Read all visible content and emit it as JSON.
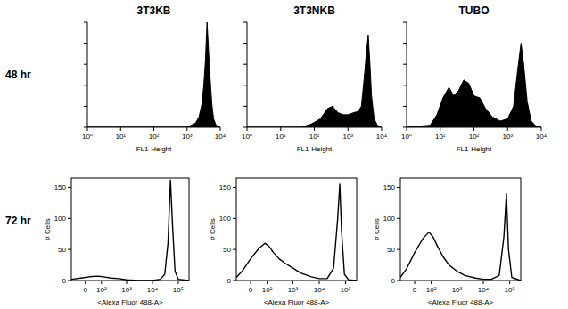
{
  "row_labels": [
    "48 hr",
    "72 hr"
  ],
  "chart_data": [
    {
      "type": "area",
      "title": "3T3KB",
      "x_label": "FL1-Height",
      "log": "x",
      "tick_labels": "x",
      "color": "#000000",
      "xlim": [
        1,
        10000
      ],
      "ylim": [
        0,
        100
      ],
      "xticks": [
        {
          "value": 1,
          "label": "10⁰"
        },
        {
          "value": 10,
          "label": "10¹"
        },
        {
          "value": 100,
          "label": "10²"
        },
        {
          "value": 1000,
          "label": "10³"
        },
        {
          "value": 10000,
          "label": "10⁴"
        }
      ],
      "yticks": [
        0,
        20,
        40,
        60,
        80,
        100
      ],
      "x": [
        1,
        1000,
        1800,
        2300,
        2800,
        3200,
        3600,
        4000,
        4500,
        5000,
        5600,
        6300,
        7500,
        10000
      ],
      "values": [
        0,
        0,
        4,
        10,
        22,
        40,
        65,
        100,
        70,
        45,
        22,
        8,
        2,
        0
      ]
    },
    {
      "type": "area",
      "title": "3T3NKB",
      "x_label": "FL1-Height",
      "log": "x",
      "tick_labels": "x",
      "color": "#000000",
      "xlim": [
        1,
        10000
      ],
      "ylim": [
        0,
        100
      ],
      "xticks": [
        {
          "value": 1,
          "label": "10⁰"
        },
        {
          "value": 10,
          "label": "10¹"
        },
        {
          "value": 100,
          "label": "10²"
        },
        {
          "value": 1000,
          "label": "10³"
        },
        {
          "value": 10000,
          "label": "10⁴"
        }
      ],
      "yticks": [
        0,
        20,
        40,
        60,
        80,
        100
      ],
      "x": [
        1,
        40,
        80,
        150,
        250,
        350,
        500,
        700,
        1000,
        1500,
        2000,
        2500,
        3000,
        3500,
        4000,
        4500,
        5000,
        6000,
        7500,
        10000
      ],
      "values": [
        0,
        0,
        3,
        8,
        18,
        20,
        14,
        12,
        12,
        14,
        15,
        20,
        45,
        70,
        88,
        60,
        30,
        8,
        2,
        0
      ]
    },
    {
      "type": "area",
      "title": "TUBO",
      "x_label": "FL1-Height",
      "log": "x",
      "tick_labels": "x",
      "color": "#000000",
      "xlim": [
        1,
        10000
      ],
      "ylim": [
        0,
        100
      ],
      "xticks": [
        {
          "value": 1,
          "label": "10⁰"
        },
        {
          "value": 10,
          "label": "10¹"
        },
        {
          "value": 100,
          "label": "10²"
        },
        {
          "value": 1000,
          "label": "10³"
        },
        {
          "value": 10000,
          "label": "10⁴"
        }
      ],
      "yticks": [
        0,
        20,
        40,
        60,
        80,
        100
      ],
      "x": [
        1,
        5,
        8,
        12,
        18,
        25,
        35,
        50,
        70,
        100,
        150,
        220,
        350,
        600,
        1000,
        1500,
        2000,
        2500,
        3000,
        3800,
        5000,
        7000,
        10000
      ],
      "values": [
        0,
        2,
        12,
        28,
        38,
        30,
        35,
        45,
        42,
        30,
        28,
        18,
        10,
        6,
        8,
        20,
        55,
        80,
        60,
        25,
        6,
        1,
        0
      ]
    },
    {
      "type": "line",
      "x_label": "<Alexa Fluor 488-A>",
      "y_label": "# Cells",
      "log": "x",
      "color": "#000000",
      "xlim": [
        -80,
        262144
      ],
      "ylim": [
        0,
        165
      ],
      "xticks": [
        0,
        {
          "value": 100,
          "label": "10²"
        },
        {
          "value": 1000,
          "label": "10³"
        },
        {
          "value": 10000,
          "label": "10⁴"
        },
        {
          "value": 100000,
          "label": "10⁵"
        }
      ],
      "yticks": [
        0,
        50,
        100,
        150
      ],
      "x": [
        -80,
        -20,
        20,
        60,
        120,
        250,
        500,
        1000,
        3000,
        10000,
        20000,
        30000,
        40000,
        50000,
        60000,
        75000,
        100000,
        262144
      ],
      "values": [
        2,
        4,
        6,
        7,
        6,
        4,
        3,
        1,
        0,
        0,
        2,
        10,
        60,
        162,
        90,
        15,
        2,
        0
      ]
    },
    {
      "type": "line",
      "x_label": "<Alexa Fluor 488-A>",
      "y_label": "# Cells",
      "log": "x",
      "color": "#000000",
      "xlim": [
        -80,
        262144
      ],
      "ylim": [
        0,
        165
      ],
      "xticks": [
        0,
        {
          "value": 100,
          "label": "10²"
        },
        {
          "value": 1000,
          "label": "10³"
        },
        {
          "value": 10000,
          "label": "10⁴"
        },
        {
          "value": 100000,
          "label": "10⁵"
        }
      ],
      "yticks": [
        0,
        50,
        100,
        150
      ],
      "x": [
        -80,
        -40,
        0,
        40,
        80,
        120,
        180,
        300,
        500,
        1000,
        2000,
        5000,
        10000,
        20000,
        35000,
        50000,
        60000,
        70000,
        90000,
        130000,
        262144
      ],
      "values": [
        5,
        15,
        35,
        52,
        60,
        55,
        45,
        35,
        28,
        20,
        12,
        6,
        3,
        3,
        20,
        100,
        155,
        80,
        10,
        1,
        0
      ]
    },
    {
      "type": "line",
      "x_label": "<Alexa Fluor 488-A>",
      "y_label": "# Cells",
      "log": "x",
      "color": "#000000",
      "xlim": [
        -80,
        262144
      ],
      "ylim": [
        0,
        165
      ],
      "xticks": [
        0,
        {
          "value": 100,
          "label": "10²"
        },
        {
          "value": 1000,
          "label": "10³"
        },
        {
          "value": 10000,
          "label": "10⁴"
        },
        {
          "value": 100000,
          "label": "10⁵"
        }
      ],
      "yticks": [
        0,
        50,
        100,
        150
      ],
      "x": [
        -80,
        -40,
        0,
        40,
        80,
        120,
        180,
        300,
        500,
        1000,
        2000,
        5000,
        10000,
        20000,
        40000,
        60000,
        75000,
        90000,
        120000,
        262144
      ],
      "values": [
        5,
        18,
        45,
        68,
        78,
        70,
        55,
        38,
        25,
        15,
        8,
        4,
        2,
        2,
        8,
        70,
        140,
        50,
        5,
        0
      ]
    }
  ]
}
